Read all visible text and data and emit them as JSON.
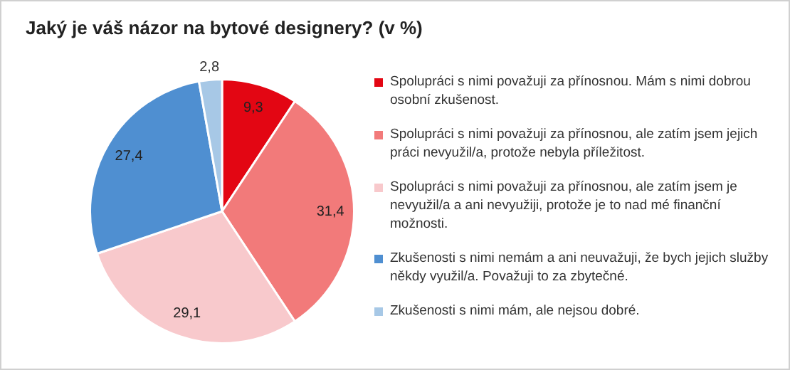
{
  "chart_data": {
    "type": "pie",
    "title": "Jaký je váš názor na bytové designery? (v %)",
    "categories": [
      "Spolupráci s nimi považuji za přínosnou. Mám s nimi dobrou osobní zkušenost.",
      "Spolupráci s nimi považuji za přínosnou, ale zatím jsem jejich práci nevyužil/a, protože nebyla příležitost.",
      "Spolupráci s nimi považuji za přínosnou, ale zatím jsem je nevyužil/a a ani nevyužiji, protože je to nad mé finanční možnosti.",
      "Zkušenosti s nimi nemám a ani neuvažuji, že bych jejich služby někdy využil/a. Považuji to za zbytečné.",
      "Zkušenosti s nimi mám, ale nejsou dobré."
    ],
    "values": [
      9.3,
      31.4,
      29.1,
      27.4,
      2.8
    ],
    "colors": [
      "#e30613",
      "#f27a7a",
      "#f8c9cc",
      "#4f8fd1",
      "#a7c8e6"
    ],
    "value_labels": [
      "9,3",
      "31,4",
      "29,1",
      "27,4",
      "2,8"
    ],
    "legend": "right"
  }
}
